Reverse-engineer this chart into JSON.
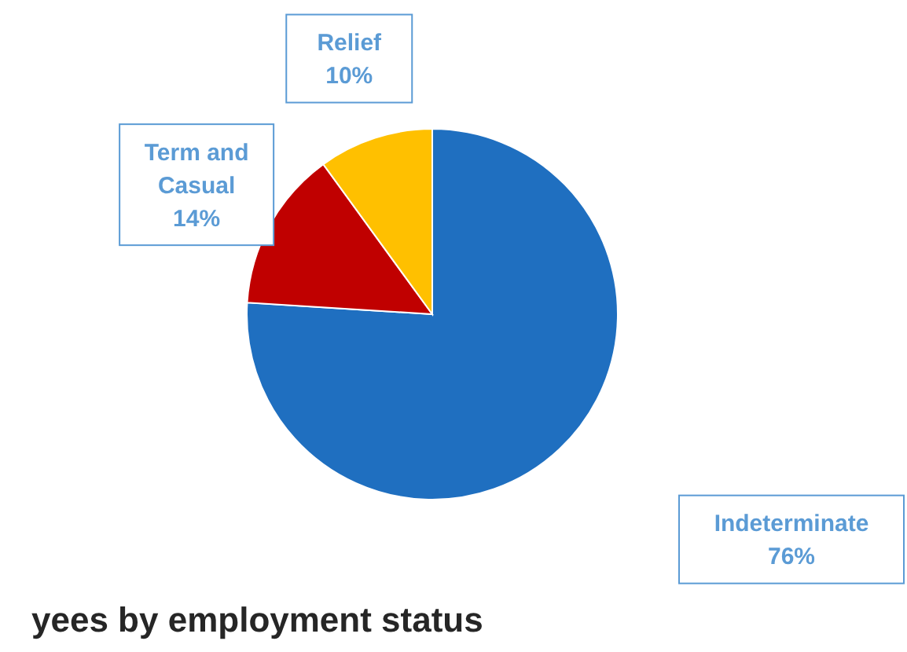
{
  "chart_data": {
    "type": "pie",
    "title": "yees by employment status",
    "categories": [
      "Indeterminate",
      "Term and Casual",
      "Relief"
    ],
    "values": [
      76,
      14,
      10
    ],
    "value_labels": [
      "76%",
      "14%",
      "10%"
    ],
    "colors": [
      "#1f6fc0",
      "#c00000",
      "#ffc000"
    ]
  }
}
